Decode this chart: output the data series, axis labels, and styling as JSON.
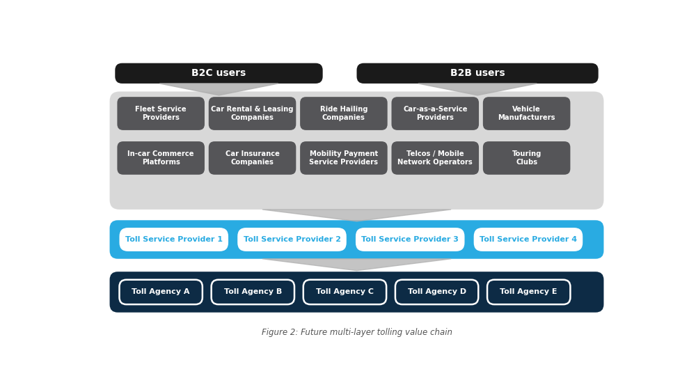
{
  "bg_color": "#ffffff",
  "title": "Figure 2: Future multi-layer tolling value chain",
  "b2c_label": "B2C users",
  "b2b_label": "B2B users",
  "top_row_items": [
    "Fleet Service\nProviders",
    "Car Rental & Leasing\nCompanies",
    "Ride Hailing\nCompanies",
    "Car-as-a-Service\nProviders",
    "Vehicle\nManufacturers"
  ],
  "bottom_row_items": [
    "In-car Commerce\nPlatforms",
    "Car Insurance\nCompanies",
    "Mobility Payment\nService Providers",
    "Telcos / Mobile\nNetwork Operators",
    "Touring\nClubs"
  ],
  "tsp_items": [
    "Toll Service Provider 1",
    "Toll Service Provider 2",
    "Toll Service Provider 3",
    "Toll Service Provider 4"
  ],
  "agency_items": [
    "Toll Agency A",
    "Toll Agency B",
    "Toll Agency C",
    "Toll Agency D",
    "Toll Agency E"
  ],
  "dark_box_color": "#555558",
  "dark_box_text_color": "#ffffff",
  "gray_bg_color": "#d8d8d8",
  "blue_bg_color": "#29abe2",
  "navy_bg_color": "#0d2b45",
  "tsp_box_color": "#ffffff",
  "tsp_text_color": "#29abe2",
  "agency_box_border_color": "#ffffff",
  "agency_text_color": "#ffffff",
  "black_header_color": "#1a1a1a",
  "arrow_color": "#b0b0b0",
  "caption_color": "#555555"
}
